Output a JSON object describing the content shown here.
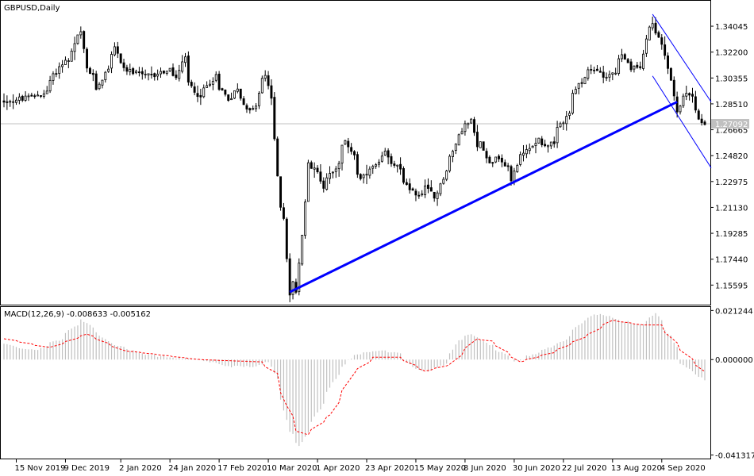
{
  "chart_data": [
    {
      "type": "candlestick",
      "title": "GBPUSD,Daily",
      "ylim": [
        1.142,
        1.358
      ],
      "y_ticks": [
        "1.34045",
        "1.32200",
        "1.30355",
        "1.28510",
        "1.26665",
        "1.24820",
        "1.22975",
        "1.21130",
        "1.19285",
        "1.17440",
        "1.15595"
      ],
      "current_price": "1.27092",
      "x_ticks": [
        "15 Nov 2019",
        "9 Dec 2019",
        "2 Jan 2020",
        "24 Jan 2020",
        "17 Feb 2020",
        "10 Mar 2020",
        "1 Apr 2020",
        "23 Apr 2020",
        "15 May 2020",
        "8 Jun 2020",
        "30 Jun 2020",
        "22 Jul 2020",
        "13 Aug 2020",
        "4 Sep 2020"
      ],
      "anchors": [
        [
          "2019-11-11",
          1.287
        ],
        [
          "2019-11-20",
          1.289
        ],
        [
          "2019-11-29",
          1.293
        ],
        [
          "2019-12-06",
          1.314
        ],
        [
          "2019-12-10",
          1.316
        ],
        [
          "2019-12-13",
          1.333
        ],
        [
          "2019-12-16",
          1.336
        ],
        [
          "2019-12-18",
          1.31
        ],
        [
          "2019-12-23",
          1.296
        ],
        [
          "2019-12-31",
          1.325
        ],
        [
          "2020-01-03",
          1.311
        ],
        [
          "2020-01-10",
          1.306
        ],
        [
          "2020-01-16",
          1.305
        ],
        [
          "2020-01-24",
          1.309
        ],
        [
          "2020-01-28",
          1.304
        ],
        [
          "2020-01-31",
          1.318
        ],
        [
          "2020-02-03",
          1.3
        ],
        [
          "2020-02-07",
          1.289
        ],
        [
          "2020-02-14",
          1.305
        ],
        [
          "2020-02-20",
          1.289
        ],
        [
          "2020-02-25",
          1.295
        ],
        [
          "2020-02-28",
          1.28
        ],
        [
          "2020-03-04",
          1.283
        ],
        [
          "2020-03-06",
          1.302
        ],
        [
          "2020-03-09",
          1.306
        ],
        [
          "2020-03-11",
          1.288
        ],
        [
          "2020-03-13",
          1.235
        ],
        [
          "2020-03-17",
          1.202
        ],
        [
          "2020-03-19",
          1.148
        ],
        [
          "2020-03-20",
          1.159
        ],
        [
          "2020-03-23",
          1.151
        ],
        [
          "2020-03-25",
          1.19
        ],
        [
          "2020-03-27",
          1.243
        ],
        [
          "2020-03-31",
          1.24
        ],
        [
          "2020-04-03",
          1.226
        ],
        [
          "2020-04-09",
          1.24
        ],
        [
          "2020-04-14",
          1.258
        ],
        [
          "2020-04-17",
          1.249
        ],
        [
          "2020-04-21",
          1.231
        ],
        [
          "2020-04-24",
          1.237
        ],
        [
          "2020-04-29",
          1.242
        ],
        [
          "2020-05-01",
          1.251
        ],
        [
          "2020-05-05",
          1.244
        ],
        [
          "2020-05-08",
          1.24
        ],
        [
          "2020-05-13",
          1.223
        ],
        [
          "2020-05-18",
          1.219
        ],
        [
          "2020-05-20",
          1.225
        ],
        [
          "2020-05-25",
          1.218
        ],
        [
          "2020-05-28",
          1.233
        ],
        [
          "2020-06-02",
          1.251
        ],
        [
          "2020-06-05",
          1.267
        ],
        [
          "2020-06-08",
          1.27
        ],
        [
          "2020-06-10",
          1.273
        ],
        [
          "2020-06-12",
          1.254
        ],
        [
          "2020-06-15",
          1.258
        ],
        [
          "2020-06-18",
          1.243
        ],
        [
          "2020-06-22",
          1.248
        ],
        [
          "2020-06-25",
          1.242
        ],
        [
          "2020-06-29",
          1.231
        ],
        [
          "2020-07-02",
          1.248
        ],
        [
          "2020-07-07",
          1.253
        ],
        [
          "2020-07-10",
          1.261
        ],
        [
          "2020-07-14",
          1.256
        ],
        [
          "2020-07-17",
          1.257
        ],
        [
          "2020-07-21",
          1.27
        ],
        [
          "2020-07-24",
          1.279
        ],
        [
          "2020-07-28",
          1.295
        ],
        [
          "2020-07-31",
          1.304
        ],
        [
          "2020-08-04",
          1.309
        ],
        [
          "2020-08-07",
          1.308
        ],
        [
          "2020-08-11",
          1.305
        ],
        [
          "2020-08-14",
          1.308
        ],
        [
          "2020-08-18",
          1.319
        ],
        [
          "2020-08-21",
          1.31
        ],
        [
          "2020-08-26",
          1.311
        ],
        [
          "2020-08-28",
          1.333
        ],
        [
          "2020-09-01",
          1.342
        ],
        [
          "2020-09-03",
          1.332
        ],
        [
          "2020-09-07",
          1.318
        ],
        [
          "2020-09-09",
          1.301
        ],
        [
          "2020-09-11",
          1.279
        ],
        [
          "2020-09-14",
          1.285
        ],
        [
          "2020-09-16",
          1.293
        ],
        [
          "2020-09-18",
          1.292
        ],
        [
          "2020-09-22",
          1.275
        ],
        [
          "2020-09-24",
          1.2709
        ]
      ]
    },
    {
      "type": "bar",
      "title": "MACD(12,26,9) -0.008633 -0.005162",
      "ylim": [
        -0.0425,
        0.0224
      ],
      "y_ticks": [
        "0.021244",
        "0.000000",
        "-0.041317"
      ],
      "macd_anchors": [
        [
          "2019-11-11",
          0.0065
        ],
        [
          "2019-11-25",
          0.004
        ],
        [
          "2019-12-06",
          0.009
        ],
        [
          "2019-12-16",
          0.0175
        ],
        [
          "2019-12-27",
          0.008
        ],
        [
          "2020-01-10",
          0.003
        ],
        [
          "2020-01-24",
          0.001
        ],
        [
          "2020-02-07",
          0.0
        ],
        [
          "2020-02-21",
          -0.003
        ],
        [
          "2020-03-04",
          -0.003
        ],
        [
          "2020-03-10",
          -0.001
        ],
        [
          "2020-03-13",
          -0.008
        ],
        [
          "2020-03-16",
          -0.017
        ],
        [
          "2020-03-19",
          -0.031
        ],
        [
          "2020-03-24",
          -0.037
        ],
        [
          "2020-03-31",
          -0.025
        ],
        [
          "2020-04-09",
          -0.008
        ],
        [
          "2020-04-17",
          0.002
        ],
        [
          "2020-04-30",
          0.004
        ],
        [
          "2020-05-08",
          0.003
        ],
        [
          "2020-05-15",
          -0.004
        ],
        [
          "2020-05-22",
          -0.005
        ],
        [
          "2020-05-29",
          -0.002
        ],
        [
          "2020-06-04",
          0.008
        ],
        [
          "2020-06-10",
          0.011
        ],
        [
          "2020-06-19",
          0.006
        ],
        [
          "2020-06-30",
          -0.001
        ],
        [
          "2020-07-10",
          0.003
        ],
        [
          "2020-07-22",
          0.008
        ],
        [
          "2020-07-31",
          0.017
        ],
        [
          "2020-08-07",
          0.02
        ],
        [
          "2020-08-17",
          0.017
        ],
        [
          "2020-08-26",
          0.015
        ],
        [
          "2020-09-02",
          0.02
        ],
        [
          "2020-09-09",
          0.01
        ],
        [
          "2020-09-14",
          -0.002
        ],
        [
          "2020-09-24",
          -0.0086
        ]
      ],
      "signal_anchors": [
        [
          "2019-11-11",
          0.009
        ],
        [
          "2019-12-01",
          0.005
        ],
        [
          "2019-12-18",
          0.011
        ],
        [
          "2020-01-03",
          0.004
        ],
        [
          "2020-02-07",
          0.0
        ],
        [
          "2020-03-06",
          -0.001
        ],
        [
          "2020-03-13",
          -0.006
        ],
        [
          "2020-03-18",
          -0.02
        ],
        [
          "2020-03-23",
          -0.031
        ],
        [
          "2020-03-27",
          -0.0325
        ],
        [
          "2020-04-07",
          -0.024
        ],
        [
          "2020-04-17",
          -0.006
        ],
        [
          "2020-04-27",
          0.001
        ],
        [
          "2020-05-08",
          0.001
        ],
        [
          "2020-05-20",
          -0.005
        ],
        [
          "2020-06-01",
          -0.002
        ],
        [
          "2020-06-12",
          0.009
        ],
        [
          "2020-06-19",
          0.008
        ],
        [
          "2020-07-02",
          -0.001
        ],
        [
          "2020-07-17",
          0.003
        ],
        [
          "2020-08-03",
          0.011
        ],
        [
          "2020-08-13",
          0.017
        ],
        [
          "2020-08-27",
          0.015
        ],
        [
          "2020-09-04",
          0.015
        ],
        [
          "2020-09-14",
          0.004
        ],
        [
          "2020-09-24",
          -0.0052
        ]
      ]
    }
  ],
  "colors": {
    "candle_stroke": "#000000",
    "candle_up_fill": "#ffffff",
    "candle_down_fill": "#000000",
    "trendline": "#0000ff",
    "channel": "#0000ff",
    "price_line": "#c0c0c0",
    "macd_hist": "#c0c0c0",
    "macd_signal": "#ff0000"
  }
}
